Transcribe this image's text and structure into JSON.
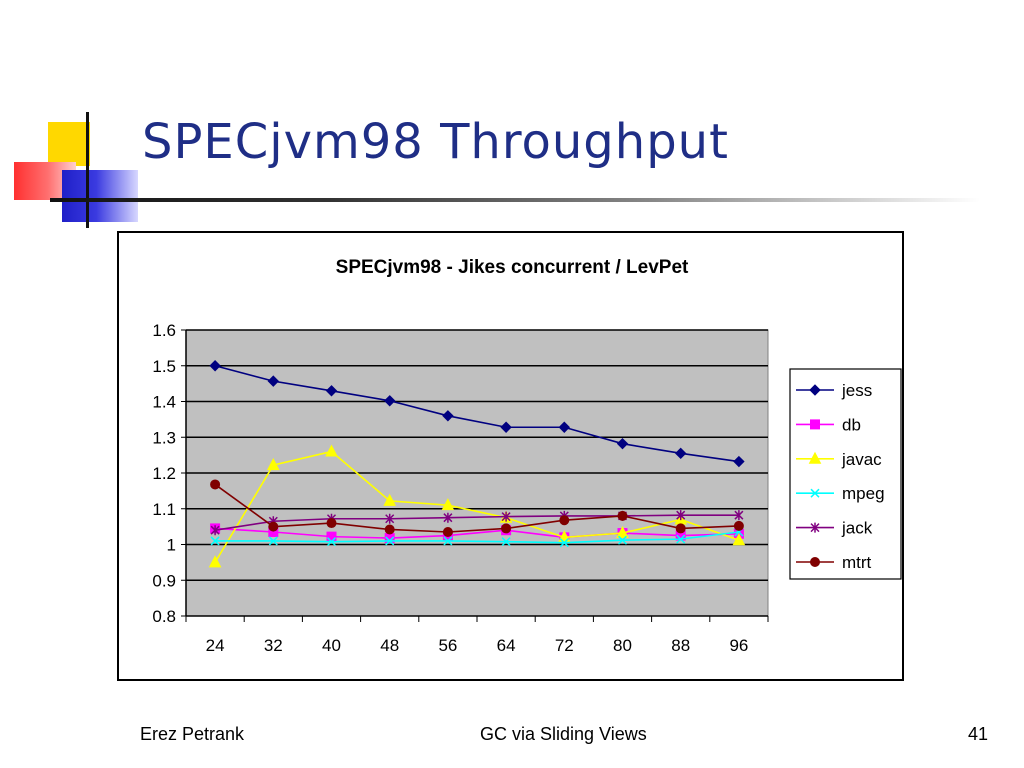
{
  "slide": {
    "title": "SPECjvm98 Throughput",
    "footer_left": "Erez Petrank",
    "footer_center": "GC via Sliding Views",
    "footer_right": "41"
  },
  "colors": {
    "title": "#1f2e86",
    "plot_background": "#c0c0c0"
  },
  "chart_data": {
    "type": "line",
    "title": "SPECjvm98 - Jikes concurrent / LevPet",
    "xlabel": "",
    "ylabel": "",
    "x": [
      "24",
      "32",
      "40",
      "48",
      "56",
      "64",
      "72",
      "80",
      "88",
      "96"
    ],
    "ylim": [
      0.8,
      1.6
    ],
    "yticks": [
      "1.6",
      "1.5",
      "1.4",
      "1.3",
      "1.2",
      "1.1",
      "1",
      "0.9",
      "0.8"
    ],
    "grid": "horizontal",
    "legend": "right",
    "series": [
      {
        "name": "jess",
        "color": "#000080",
        "marker": "diamond",
        "values": [
          1.5,
          1.457,
          1.43,
          1.402,
          1.36,
          1.328,
          1.328,
          1.282,
          1.255,
          1.232
        ]
      },
      {
        "name": "db",
        "color": "#ff00ff",
        "marker": "square",
        "values": [
          1.045,
          1.035,
          1.022,
          1.018,
          1.025,
          1.04,
          1.02,
          1.032,
          1.025,
          1.03
        ]
      },
      {
        "name": "javac",
        "color": "#ffff00",
        "marker": "triangle",
        "values": [
          0.95,
          1.222,
          1.26,
          1.122,
          1.11,
          1.075,
          1.02,
          1.032,
          1.07,
          1.012
        ]
      },
      {
        "name": "mpeg",
        "color": "#00ffff",
        "marker": "x",
        "values": [
          1.01,
          1.01,
          1.008,
          1.01,
          1.01,
          1.008,
          1.005,
          1.012,
          1.015,
          1.035
        ]
      },
      {
        "name": "jack",
        "color": "#800080",
        "marker": "asterisk",
        "values": [
          1.04,
          1.065,
          1.072,
          1.072,
          1.075,
          1.078,
          1.08,
          1.08,
          1.082,
          1.082
        ]
      },
      {
        "name": "mtrt",
        "color": "#800000",
        "marker": "circle",
        "values": [
          1.168,
          1.05,
          1.06,
          1.042,
          1.035,
          1.045,
          1.068,
          1.08,
          1.045,
          1.052
        ]
      }
    ]
  }
}
